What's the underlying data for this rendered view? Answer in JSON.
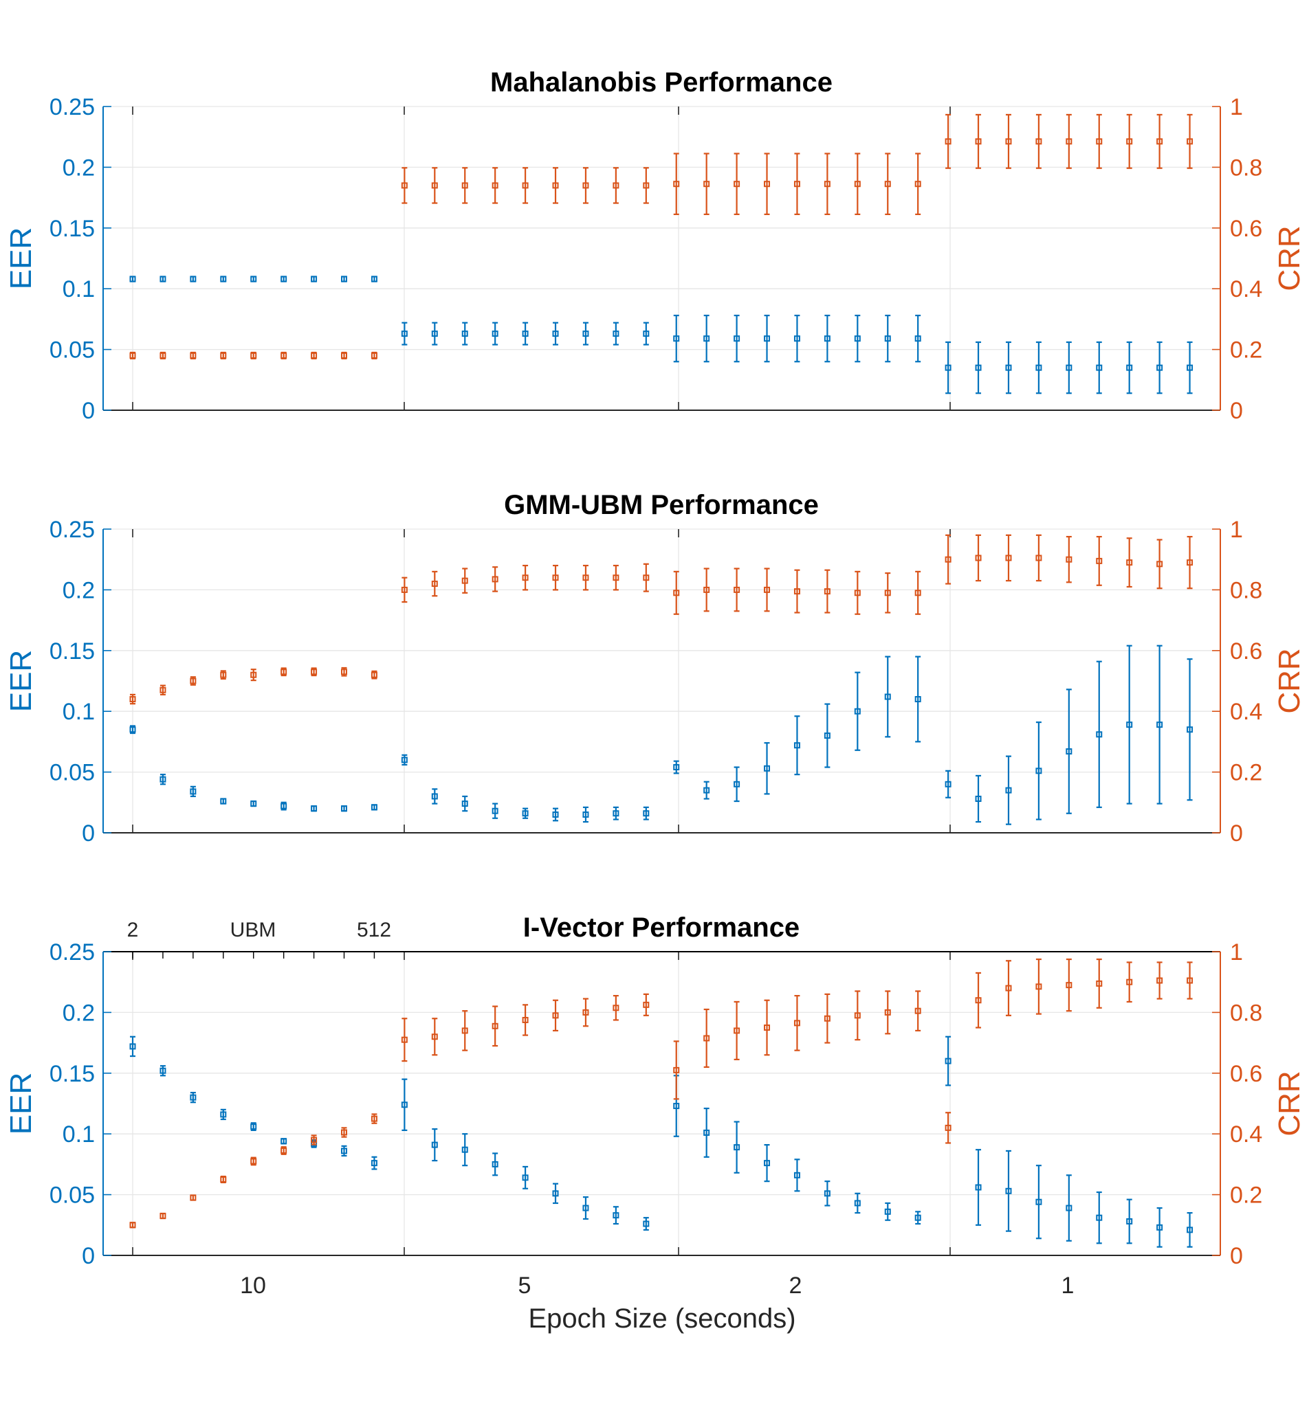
{
  "colors": {
    "eer": "#0072BD",
    "crr": "#D95319",
    "grid": "#e6e6e6",
    "axis": "#262626"
  },
  "xlabel": "Epoch Size (seconds)",
  "epoch_tick_labels": [
    "10",
    "5",
    "2",
    "1"
  ],
  "ubm_axis": {
    "labels": [
      "2",
      "UBM",
      "512"
    ]
  },
  "chart_data": [
    {
      "type": "scatter",
      "title": "Mahalanobis Performance",
      "ylabel_left": "EER",
      "ylabel_right": "CRR",
      "ylim_left": [
        0,
        0.25
      ],
      "ylim_right": [
        0,
        1
      ],
      "left_ticks": [
        "0",
        "0.05",
        "0.1",
        "0.15",
        "0.2",
        "0.25"
      ],
      "right_ticks": [
        "0",
        "0.2",
        "0.4",
        "0.6",
        "0.8",
        "1"
      ],
      "grid": true,
      "series": [
        {
          "name": "EER",
          "axis": "left",
          "error_bars": true,
          "values": [
            0.108,
            0.108,
            0.108,
            0.108,
            0.108,
            0.108,
            0.108,
            0.108,
            0.108,
            0.063,
            0.063,
            0.063,
            0.063,
            0.063,
            0.063,
            0.063,
            0.063,
            0.063,
            0.059,
            0.059,
            0.059,
            0.059,
            0.059,
            0.059,
            0.059,
            0.059,
            0.059,
            0.035,
            0.035,
            0.035,
            0.035,
            0.035,
            0.035,
            0.035,
            0.035,
            0.035
          ],
          "errors": [
            0.002,
            0.002,
            0.002,
            0.002,
            0.002,
            0.002,
            0.002,
            0.002,
            0.002,
            0.009,
            0.009,
            0.009,
            0.009,
            0.009,
            0.009,
            0.009,
            0.009,
            0.009,
            0.019,
            0.019,
            0.019,
            0.019,
            0.019,
            0.019,
            0.019,
            0.019,
            0.019,
            0.021,
            0.021,
            0.021,
            0.021,
            0.021,
            0.021,
            0.021,
            0.021,
            0.021
          ]
        },
        {
          "name": "CRR",
          "axis": "right",
          "error_bars": true,
          "values": [
            0.18,
            0.18,
            0.18,
            0.18,
            0.18,
            0.18,
            0.18,
            0.18,
            0.18,
            0.74,
            0.74,
            0.74,
            0.74,
            0.74,
            0.74,
            0.74,
            0.74,
            0.74,
            0.745,
            0.745,
            0.745,
            0.745,
            0.745,
            0.745,
            0.745,
            0.745,
            0.745,
            0.885,
            0.885,
            0.885,
            0.885,
            0.885,
            0.885,
            0.885,
            0.885,
            0.885
          ],
          "errors": [
            0.01,
            0.01,
            0.01,
            0.01,
            0.01,
            0.01,
            0.01,
            0.01,
            0.01,
            0.058,
            0.058,
            0.058,
            0.058,
            0.058,
            0.058,
            0.058,
            0.058,
            0.058,
            0.1,
            0.1,
            0.1,
            0.1,
            0.1,
            0.1,
            0.1,
            0.1,
            0.1,
            0.088,
            0.088,
            0.088,
            0.088,
            0.088,
            0.088,
            0.088,
            0.088,
            0.088
          ]
        }
      ]
    },
    {
      "type": "scatter",
      "title": "GMM-UBM Performance",
      "ylabel_left": "EER",
      "ylabel_right": "CRR",
      "ylim_left": [
        0,
        0.25
      ],
      "ylim_right": [
        0,
        1
      ],
      "left_ticks": [
        "0",
        "0.05",
        "0.1",
        "0.15",
        "0.2",
        "0.25"
      ],
      "right_ticks": [
        "0",
        "0.2",
        "0.4",
        "0.6",
        "0.8",
        "1"
      ],
      "grid": true,
      "series": [
        {
          "name": "EER",
          "axis": "left",
          "error_bars": true,
          "values": [
            0.085,
            0.044,
            0.034,
            0.026,
            0.024,
            0.022,
            0.02,
            0.02,
            0.021,
            0.06,
            0.03,
            0.024,
            0.018,
            0.016,
            0.015,
            0.015,
            0.016,
            0.016,
            0.054,
            0.035,
            0.04,
            0.053,
            0.072,
            0.08,
            0.1,
            0.112,
            0.11,
            0.04,
            0.028,
            0.035,
            0.051,
            0.067,
            0.081,
            0.089,
            0.089,
            0.085
          ],
          "errors": [
            0.003,
            0.004,
            0.004,
            0.002,
            0.002,
            0.003,
            0.002,
            0.002,
            0.002,
            0.004,
            0.006,
            0.006,
            0.006,
            0.004,
            0.005,
            0.006,
            0.005,
            0.005,
            0.005,
            0.007,
            0.014,
            0.021,
            0.024,
            0.026,
            0.032,
            0.033,
            0.035,
            0.011,
            0.019,
            0.028,
            0.04,
            0.051,
            0.06,
            0.065,
            0.065,
            0.058
          ]
        },
        {
          "name": "CRR",
          "axis": "right",
          "error_bars": true,
          "values": [
            0.44,
            0.47,
            0.5,
            0.52,
            0.52,
            0.53,
            0.53,
            0.53,
            0.52,
            0.8,
            0.82,
            0.83,
            0.835,
            0.84,
            0.84,
            0.84,
            0.84,
            0.84,
            0.79,
            0.8,
            0.8,
            0.8,
            0.795,
            0.795,
            0.79,
            0.79,
            0.79,
            0.9,
            0.905,
            0.905,
            0.905,
            0.9,
            0.895,
            0.89,
            0.885,
            0.89
          ],
          "errors": [
            0.015,
            0.015,
            0.013,
            0.013,
            0.018,
            0.012,
            0.012,
            0.013,
            0.012,
            0.04,
            0.04,
            0.04,
            0.04,
            0.04,
            0.04,
            0.04,
            0.04,
            0.045,
            0.07,
            0.07,
            0.07,
            0.07,
            0.07,
            0.07,
            0.07,
            0.065,
            0.07,
            0.08,
            0.075,
            0.075,
            0.075,
            0.075,
            0.08,
            0.08,
            0.08,
            0.085
          ]
        }
      ]
    },
    {
      "type": "scatter",
      "title": "I-Vector Performance",
      "ylabel_left": "EER",
      "ylabel_right": "CRR",
      "ylim_left": [
        0,
        0.25
      ],
      "ylim_right": [
        0,
        1
      ],
      "left_ticks": [
        "0",
        "0.05",
        "0.1",
        "0.15",
        "0.2",
        "0.25"
      ],
      "right_ticks": [
        "0",
        "0.2",
        "0.4",
        "0.6",
        "0.8",
        "1"
      ],
      "grid": true,
      "series": [
        {
          "name": "EER",
          "axis": "left",
          "error_bars": true,
          "values": [
            0.172,
            0.152,
            0.13,
            0.116,
            0.106,
            0.094,
            0.092,
            0.086,
            0.076,
            0.124,
            0.091,
            0.087,
            0.075,
            0.064,
            0.051,
            0.039,
            0.033,
            0.026,
            0.123,
            0.101,
            0.089,
            0.076,
            0.066,
            0.051,
            0.043,
            0.036,
            0.031,
            0.16,
            0.056,
            0.053,
            0.044,
            0.039,
            0.031,
            0.028,
            0.023,
            0.021
          ],
          "errors": [
            0.008,
            0.004,
            0.004,
            0.004,
            0.003,
            0.002,
            0.003,
            0.004,
            0.005,
            0.021,
            0.013,
            0.013,
            0.009,
            0.009,
            0.008,
            0.009,
            0.007,
            0.005,
            0.025,
            0.02,
            0.021,
            0.015,
            0.013,
            0.01,
            0.008,
            0.007,
            0.005,
            0.02,
            0.031,
            0.033,
            0.03,
            0.027,
            0.021,
            0.018,
            0.016,
            0.014
          ]
        },
        {
          "name": "CRR",
          "axis": "right",
          "error_bars": true,
          "values": [
            0.1,
            0.13,
            0.19,
            0.25,
            0.31,
            0.345,
            0.38,
            0.405,
            0.45,
            0.71,
            0.72,
            0.74,
            0.755,
            0.775,
            0.79,
            0.8,
            0.815,
            0.825,
            0.61,
            0.715,
            0.74,
            0.75,
            0.765,
            0.78,
            0.79,
            0.8,
            0.805,
            0.42,
            0.84,
            0.88,
            0.885,
            0.89,
            0.895,
            0.9,
            0.905,
            0.905
          ],
          "errors": [
            0.008,
            0.008,
            0.008,
            0.01,
            0.012,
            0.012,
            0.015,
            0.015,
            0.015,
            0.07,
            0.06,
            0.065,
            0.065,
            0.05,
            0.05,
            0.045,
            0.04,
            0.035,
            0.095,
            0.095,
            0.095,
            0.09,
            0.09,
            0.08,
            0.08,
            0.07,
            0.065,
            0.05,
            0.09,
            0.09,
            0.09,
            0.085,
            0.08,
            0.065,
            0.06,
            0.06
          ]
        }
      ]
    }
  ]
}
